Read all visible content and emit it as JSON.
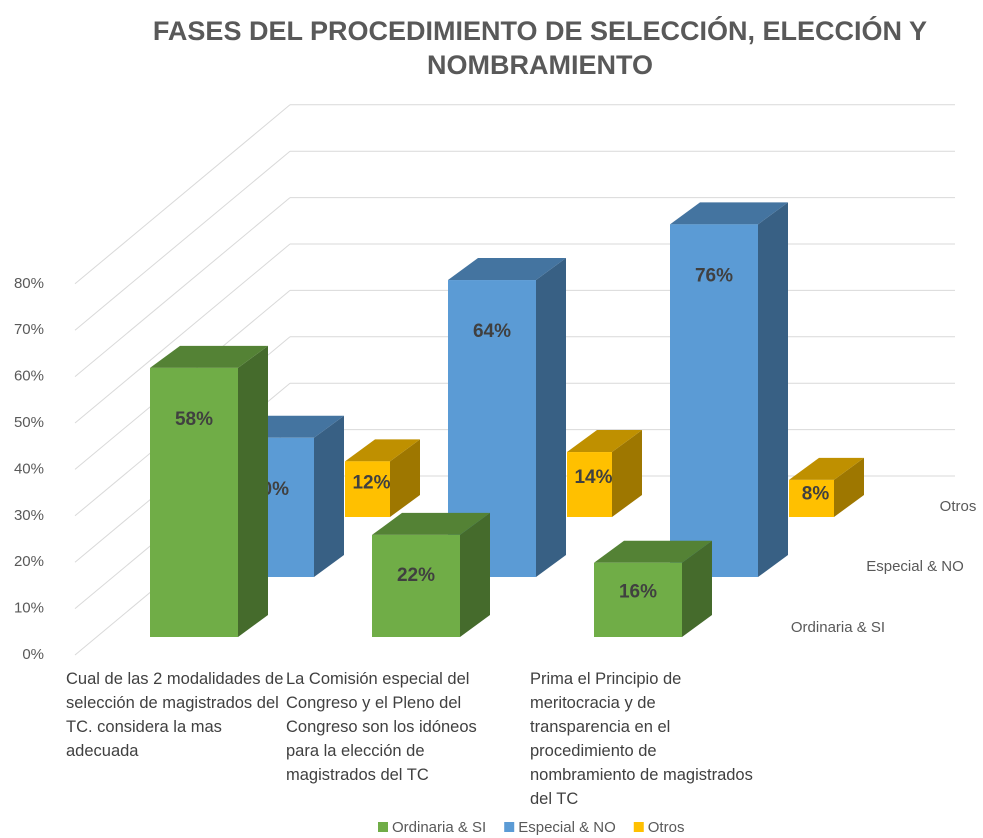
{
  "chart_data": {
    "type": "bar3d",
    "title": "FASES DEL PROCEDIMIENTO DE SELECCIÓN, ELECCIÓN Y NOMBRAMIENTO",
    "categories": [
      "Cual de las 2 modalidades de selección de magistrados del TC. considera la mas adecuada",
      "La Comisión especial del Congreso y el Pleno del Congreso son los idóneos para la elección de magistrados del TC",
      "Prima el Principio de meritocracia y de transparencia en el procedimiento de nombramiento de magistrados del TC"
    ],
    "series": [
      {
        "name": "Ordinaria & SI",
        "color": "#70ad47",
        "values": [
          58,
          22,
          16
        ],
        "value_labels": [
          "58%",
          "22%",
          "16%"
        ]
      },
      {
        "name": "Especial & NO",
        "color": "#5b9bd5",
        "values": [
          30,
          64,
          76
        ],
        "value_labels": [
          "30%",
          "64%",
          "76%"
        ]
      },
      {
        "name": "Otros",
        "color": "#ffc000",
        "values": [
          12,
          14,
          8
        ],
        "value_labels": [
          "12%",
          "14%",
          "8%"
        ]
      }
    ],
    "ylim": [
      0,
      80
    ],
    "yticks": [
      {
        "value": 0,
        "label": "0%"
      },
      {
        "value": 10,
        "label": "10%"
      },
      {
        "value": 20,
        "label": "20%"
      },
      {
        "value": 30,
        "label": "30%"
      },
      {
        "value": 40,
        "label": "40%"
      },
      {
        "value": 50,
        "label": "50%"
      },
      {
        "value": 60,
        "label": "60%"
      },
      {
        "value": 70,
        "label": "70%"
      },
      {
        "value": 80,
        "label": "80%"
      }
    ],
    "grid": true,
    "legend": "bottom"
  }
}
